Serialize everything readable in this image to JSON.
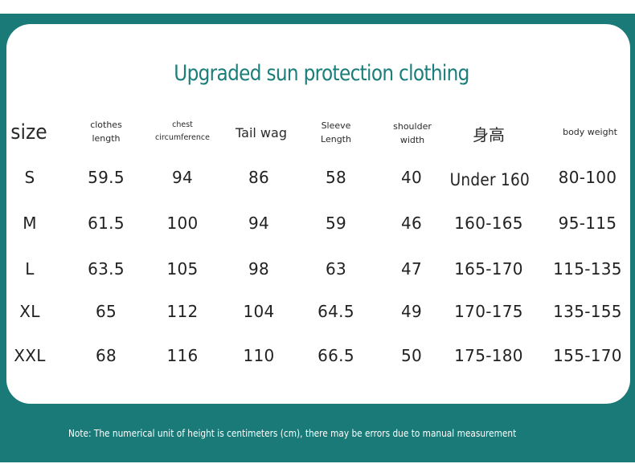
{
  "title": "Upgraded sun protection clothing",
  "headers": {
    "size": "size",
    "clothes_length_1": "clothes",
    "clothes_length_2": "length",
    "chest_1": "chest",
    "chest_2": "circumference",
    "tail_wag": "Tail wag",
    "sleeve_1": "Sleeve",
    "sleeve_2": "Length",
    "shoulder_1": "shoulder",
    "shoulder_2": "width",
    "height": "身高",
    "body_weight": "body weight"
  },
  "rows": [
    {
      "size": "S",
      "clothes_length": "59.5",
      "chest": "94",
      "tail_wag": "86",
      "sleeve": "58",
      "shoulder": "40",
      "height": "Under 160",
      "weight": "80-100"
    },
    {
      "size": "M",
      "clothes_length": "61.5",
      "chest": "100",
      "tail_wag": "94",
      "sleeve": "59",
      "shoulder": "46",
      "height": "160-165",
      "weight": "95-115"
    },
    {
      "size": "L",
      "clothes_length": "63.5",
      "chest": "105",
      "tail_wag": "98",
      "sleeve": "63",
      "shoulder": "47",
      "height": "165-170",
      "weight": "115-135"
    },
    {
      "size": "XL",
      "clothes_length": "65",
      "chest": "112",
      "tail_wag": "104",
      "sleeve": "64.5",
      "shoulder": "49",
      "height": "170-175",
      "weight": "135-155"
    },
    {
      "size": "XXL",
      "clothes_length": "68",
      "chest": "116",
      "tail_wag": "110",
      "sleeve": "66.5",
      "shoulder": "50",
      "height": "175-180",
      "weight": "155-170"
    }
  ],
  "note": "Note: The numerical unit of height is centimeters (cm), there may be errors due to manual measurement",
  "colors": {
    "frame": "#197a78",
    "title": "#1a7e7a"
  }
}
